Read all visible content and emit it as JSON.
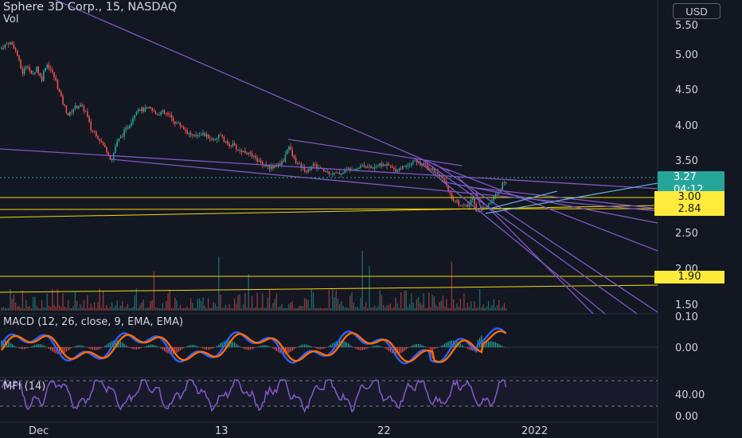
{
  "header": {
    "symbol_line": "Sphere 3D Corp., 15, NASDAQ",
    "volume_label": "Vol",
    "currency_button": "USD"
  },
  "indicators": {
    "macd_title": "MACD (12, 26, close, 9, EMA, EMA)",
    "mfi_title": "MFI (14)"
  },
  "price_axis": {
    "labels": [
      "5.50",
      "5.00",
      "4.50",
      "4.00",
      "3.50",
      "2.50",
      "2.00",
      "1.50"
    ]
  },
  "macd_axis": {
    "labels": [
      "0.10",
      "0.00"
    ]
  },
  "mfi_axis": {
    "labels": [
      "40.00",
      "0.00"
    ]
  },
  "time_axis": {
    "labels": [
      "Dec",
      "13",
      "22",
      "2022"
    ]
  },
  "price_tags": {
    "last_price": "3.27",
    "countdown": "04:12",
    "level_a": "3.00",
    "level_b": "2.84",
    "level_c": "1.90"
  },
  "colors": {
    "background": "#131722",
    "up": "#26a69a",
    "down": "#ef5350",
    "trendline": "#7e57c2",
    "level": "#f5d90a",
    "macd_line": "#2962ff",
    "signal_line": "#ff6d00",
    "mfi_line": "#7e57c2",
    "last_price_tag": "#26a69a"
  },
  "chart_data": {
    "type": "candlestick",
    "y_axis_range": [
      1.35,
      5.6
    ],
    "macd_range": [
      -0.05,
      0.11
    ],
    "mfi_range": [
      0,
      80
    ],
    "price_path": [
      [
        0,
        5.15
      ],
      [
        5,
        5.2
      ],
      [
        12,
        5.25
      ],
      [
        18,
        5.18
      ],
      [
        22,
        5.05
      ],
      [
        28,
        4.8
      ],
      [
        34,
        4.95
      ],
      [
        40,
        4.75
      ],
      [
        46,
        4.9
      ],
      [
        52,
        4.7
      ],
      [
        58,
        4.95
      ],
      [
        64,
        4.85
      ],
      [
        70,
        4.7
      ],
      [
        78,
        4.4
      ],
      [
        86,
        4.2
      ],
      [
        92,
        4.3
      ],
      [
        100,
        4.35
      ],
      [
        108,
        4.25
      ],
      [
        114,
        4.0
      ],
      [
        120,
        3.95
      ],
      [
        128,
        3.8
      ],
      [
        134,
        3.7
      ],
      [
        140,
        3.55
      ],
      [
        146,
        3.8
      ],
      [
        152,
        3.9
      ],
      [
        158,
        4.0
      ],
      [
        164,
        4.1
      ],
      [
        172,
        4.3
      ],
      [
        180,
        4.28
      ],
      [
        188,
        4.3
      ],
      [
        196,
        4.22
      ],
      [
        204,
        4.25
      ],
      [
        212,
        4.2
      ],
      [
        220,
        4.1
      ],
      [
        228,
        4.05
      ],
      [
        236,
        3.95
      ],
      [
        244,
        3.9
      ],
      [
        252,
        3.95
      ],
      [
        260,
        3.9
      ],
      [
        268,
        3.85
      ],
      [
        276,
        3.92
      ],
      [
        284,
        3.8
      ],
      [
        292,
        3.78
      ],
      [
        300,
        3.7
      ],
      [
        308,
        3.68
      ],
      [
        316,
        3.62
      ],
      [
        324,
        3.55
      ],
      [
        332,
        3.5
      ],
      [
        340,
        3.45
      ],
      [
        348,
        3.48
      ],
      [
        356,
        3.55
      ],
      [
        362,
        3.78
      ],
      [
        368,
        3.6
      ],
      [
        374,
        3.5
      ],
      [
        380,
        3.45
      ],
      [
        386,
        3.4
      ],
      [
        392,
        3.5
      ],
      [
        400,
        3.45
      ],
      [
        408,
        3.4
      ],
      [
        416,
        3.38
      ],
      [
        424,
        3.36
      ],
      [
        432,
        3.4
      ],
      [
        440,
        3.45
      ],
      [
        448,
        3.45
      ],
      [
        456,
        3.5
      ],
      [
        464,
        3.45
      ],
      [
        472,
        3.48
      ],
      [
        480,
        3.5
      ],
      [
        488,
        3.48
      ],
      [
        496,
        3.42
      ],
      [
        504,
        3.45
      ],
      [
        512,
        3.5
      ],
      [
        520,
        3.55
      ],
      [
        528,
        3.5
      ],
      [
        536,
        3.48
      ],
      [
        544,
        3.42
      ],
      [
        552,
        3.35
      ],
      [
        558,
        3.25
      ],
      [
        564,
        3.1
      ],
      [
        570,
        3.0
      ],
      [
        576,
        2.95
      ],
      [
        582,
        2.9
      ],
      [
        588,
        2.9
      ],
      [
        594,
        3.05
      ],
      [
        598,
        2.85
      ],
      [
        602,
        2.82
      ],
      [
        606,
        2.9
      ],
      [
        610,
        2.92
      ],
      [
        616,
        2.95
      ],
      [
        622,
        3.05
      ],
      [
        628,
        3.15
      ],
      [
        634,
        3.27
      ]
    ]
  }
}
